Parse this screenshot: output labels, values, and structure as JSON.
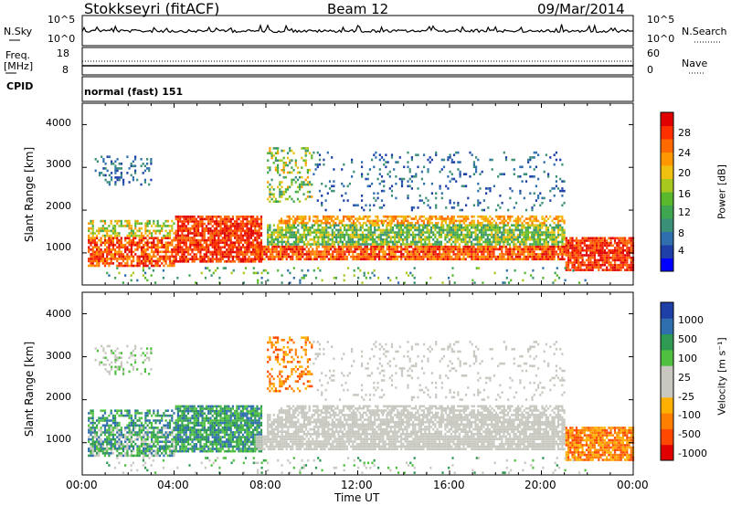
{
  "header": {
    "title_left": "Stokkseyri (fitACF)",
    "title_center": "Beam 12",
    "title_right": "09/Mar/2014"
  },
  "panels": {
    "nsky": {
      "label": "N.Sky",
      "right_label": "N.Search",
      "yticks_left": [
        "10^5",
        "10^0"
      ],
      "yticks_right": [
        "10^5",
        "10^0"
      ]
    },
    "freq": {
      "label_line1": "Freq.",
      "label_line2": "[MHz]",
      "right_label": "Nave",
      "yticks_left": [
        "18",
        "8"
      ],
      "yticks_right": [
        "60",
        "0"
      ]
    },
    "cpid": {
      "label": "CPID",
      "value": "normal (fast) 151"
    }
  },
  "colors": {
    "power_scale": [
      "#0000ff",
      "#1f3fa8",
      "#2f6fae",
      "#3a8f78",
      "#3ea550",
      "#5ab82c",
      "#a8c820",
      "#f0c010",
      "#ff9800",
      "#ff6a00",
      "#ff3000",
      "#e00000"
    ],
    "velocity_scale": [
      "#e00000",
      "#ff4800",
      "#ff8000",
      "#ffb000",
      "#c8c8c0",
      "#c8c8c0",
      "#50c040",
      "#2f9a52",
      "#2f6fae",
      "#1f3fa8"
    ]
  },
  "chart_data": [
    {
      "type": "heatmap",
      "name": "power",
      "ylabel": "Slant Range [km]",
      "yticks": [
        "1000",
        "2000",
        "3000",
        "4000"
      ],
      "ylim": [
        250,
        4500
      ],
      "colorbar_label": "Power [dB]",
      "colorbar_ticks": [
        "4",
        "8",
        "12",
        "16",
        "20",
        "24",
        "28"
      ],
      "colorbar_range": [
        0,
        32
      ]
    },
    {
      "type": "heatmap",
      "name": "velocity",
      "ylabel": "Slant Range [km]",
      "yticks": [
        "1000",
        "2000",
        "3000",
        "4000"
      ],
      "ylim": [
        250,
        4500
      ],
      "colorbar_label": "Velocity [m s⁻¹]",
      "colorbar_ticks": [
        "1000",
        "500",
        "100",
        "25",
        "-25",
        "-100",
        "-500",
        "-1000"
      ],
      "xlabel": "Time UT",
      "xticks": [
        "00:00",
        "04:00",
        "08:00",
        "12:00",
        "16:00",
        "20:00",
        "00:00"
      ],
      "xlim_hours": [
        0,
        24
      ]
    }
  ]
}
